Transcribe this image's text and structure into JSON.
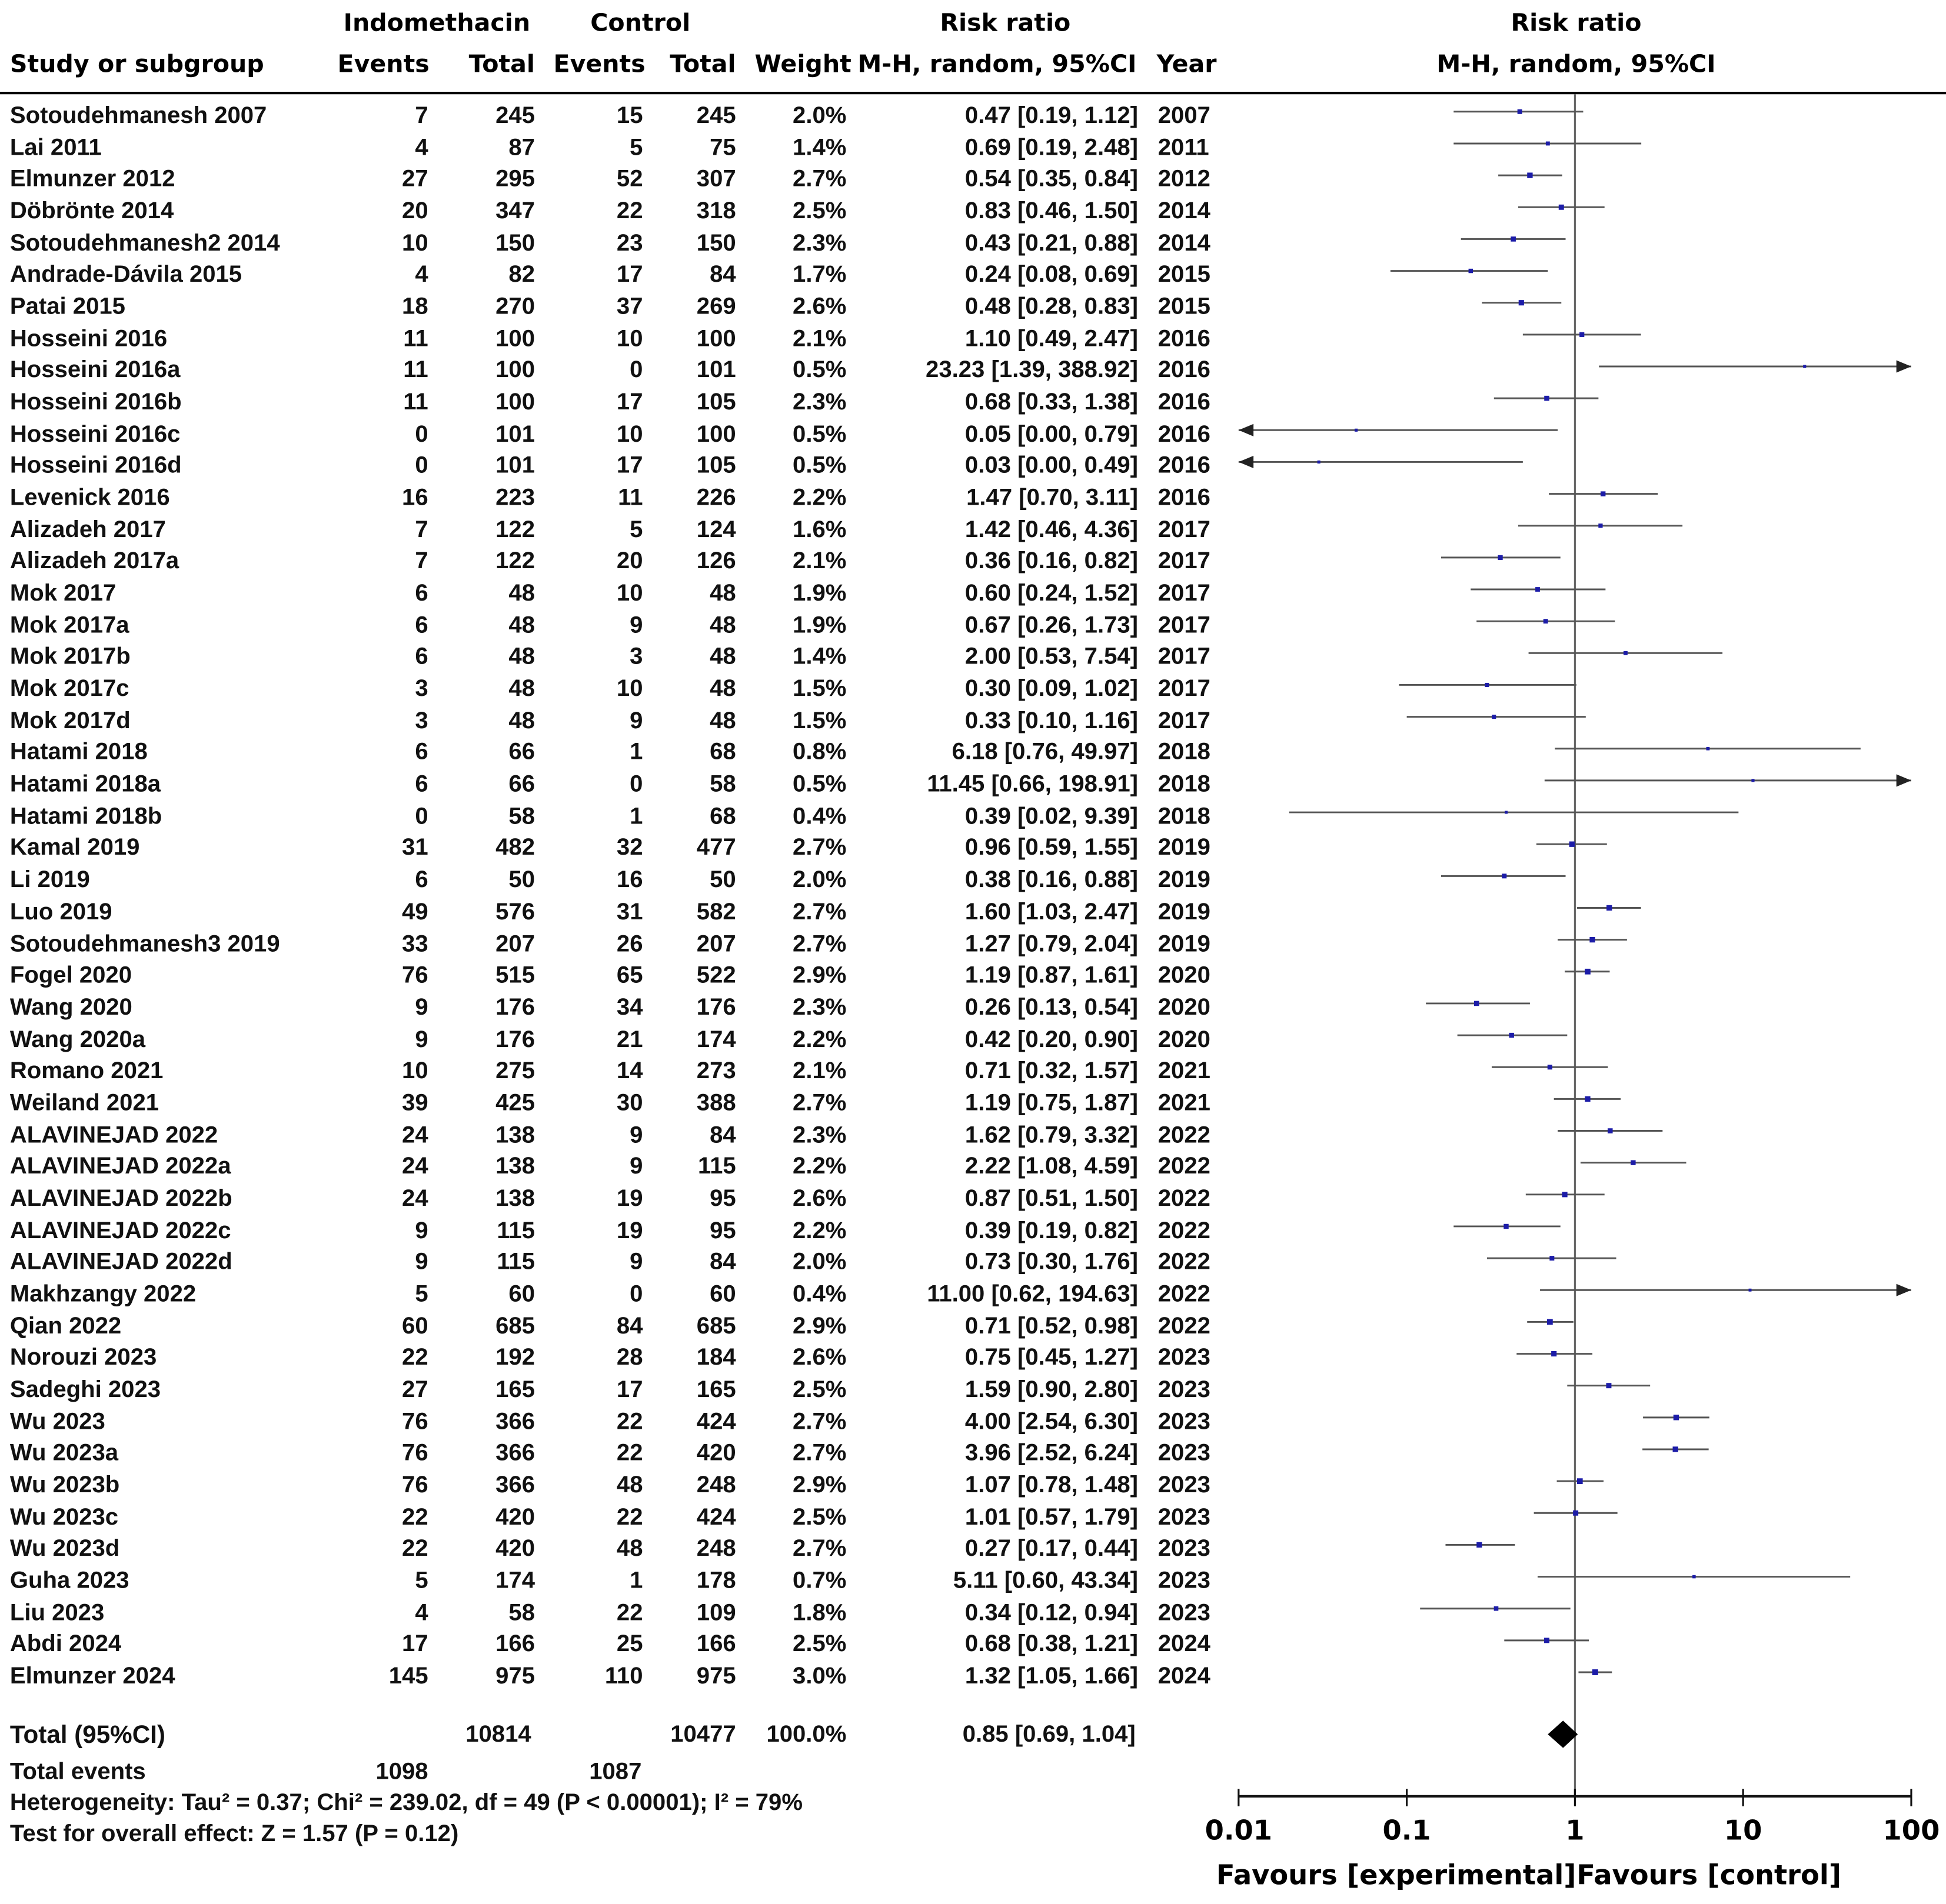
{
  "header": {
    "group1": "Indomethacin",
    "group2": "Control",
    "rr_col": "Risk ratio",
    "rr_plot": "Risk ratio",
    "study_col": "Study or subgroup",
    "events1": "Events",
    "total1": "Total",
    "events2": "Events",
    "total2": "Total",
    "weight": "Weight",
    "method": "M-H, random, 95%CI",
    "year": "Year",
    "method_plot": "M-H, random, 95%CI"
  },
  "total": {
    "label": "Total (95%CI)",
    "total1": "10814",
    "total2": "10477",
    "weight": "100.0%",
    "rr_ci": "0.85 [0.69, 1.04]",
    "events_label": "Total events",
    "events1": "1098",
    "events2": "1087",
    "heterogeneity": "Heterogeneity: Tau² = 0.37; Chi² = 239.02, df = 49 (P < 0.00001); I² = 79%",
    "overall": "Test for overall effect: Z = 1.57 (P = 0.12)"
  },
  "chart_data": {
    "type": "forest",
    "x_scale": "log",
    "xlim": [
      0.01,
      100
    ],
    "x_ticks": [
      "0.01",
      "0.1",
      "1",
      "10",
      "100"
    ],
    "left_label": "Favours [experimental]",
    "right_label": "Favours [control]",
    "reference_line": 1,
    "colors": {
      "square": "#1c1ca8",
      "ci_line": "#555555",
      "diamond": "#000000"
    },
    "pooled": {
      "rr": 0.85,
      "lo": 0.69,
      "hi": 1.04
    },
    "studies": [
      {
        "study": "Sotoudehmanesh 2007",
        "e1": "7",
        "n1": "245",
        "e2": "15",
        "n2": "245",
        "weight": "2.0%",
        "rr_ci": "0.47 [0.19, 1.12]",
        "year": "2007",
        "rr": 0.47,
        "lo": 0.19,
        "hi": 1.12
      },
      {
        "study": "Lai  2011",
        "e1": "4",
        "n1": "87",
        "e2": "5",
        "n2": "75",
        "weight": "1.4%",
        "rr_ci": "0.69 [0.19, 2.48]",
        "year": "2011",
        "rr": 0.69,
        "lo": 0.19,
        "hi": 2.48
      },
      {
        "study": "Elmunzer 2012",
        "e1": "27",
        "n1": "295",
        "e2": "52",
        "n2": "307",
        "weight": "2.7%",
        "rr_ci": "0.54 [0.35, 0.84]",
        "year": "2012",
        "rr": 0.54,
        "lo": 0.35,
        "hi": 0.84
      },
      {
        "study": "Döbrönte 2014",
        "e1": "20",
        "n1": "347",
        "e2": "22",
        "n2": "318",
        "weight": "2.5%",
        "rr_ci": "0.83 [0.46, 1.50]",
        "year": "2014",
        "rr": 0.83,
        "lo": 0.46,
        "hi": 1.5
      },
      {
        "study": "Sotoudehmanesh2 2014",
        "e1": "10",
        "n1": "150",
        "e2": "23",
        "n2": "150",
        "weight": "2.3%",
        "rr_ci": "0.43 [0.21, 0.88]",
        "year": "2014",
        "rr": 0.43,
        "lo": 0.21,
        "hi": 0.88
      },
      {
        "study": "Andrade-Dávila 2015",
        "e1": "4",
        "n1": "82",
        "e2": "17",
        "n2": "84",
        "weight": "1.7%",
        "rr_ci": "0.24 [0.08, 0.69]",
        "year": "2015",
        "rr": 0.24,
        "lo": 0.08,
        "hi": 0.69
      },
      {
        "study": "Patai 2015",
        "e1": "18",
        "n1": "270",
        "e2": "37",
        "n2": "269",
        "weight": "2.6%",
        "rr_ci": "0.48 [0.28, 0.83]",
        "year": "2015",
        "rr": 0.48,
        "lo": 0.28,
        "hi": 0.83
      },
      {
        "study": "Hosseini 2016",
        "e1": "11",
        "n1": "100",
        "e2": "10",
        "n2": "100",
        "weight": "2.1%",
        "rr_ci": "1.10 [0.49, 2.47]",
        "year": "2016",
        "rr": 1.1,
        "lo": 0.49,
        "hi": 2.47
      },
      {
        "study": "Hosseini 2016a",
        "e1": "11",
        "n1": "100",
        "e2": "0",
        "n2": "101",
        "weight": "0.5%",
        "rr_ci": "23.23 [1.39, 388.92]",
        "year": "2016",
        "rr": 23.23,
        "lo": 1.39,
        "hi": 388.92
      },
      {
        "study": "Hosseini 2016b",
        "e1": "11",
        "n1": "100",
        "e2": "17",
        "n2": "105",
        "weight": "2.3%",
        "rr_ci": "0.68 [0.33, 1.38]",
        "year": "2016",
        "rr": 0.68,
        "lo": 0.33,
        "hi": 1.38
      },
      {
        "study": "Hosseini 2016c",
        "e1": "0",
        "n1": "101",
        "e2": "10",
        "n2": "100",
        "weight": "0.5%",
        "rr_ci": "0.05 [0.00, 0.79]",
        "year": "2016",
        "rr": 0.05,
        "lo": 0.0,
        "hi": 0.79
      },
      {
        "study": "Hosseini 2016d",
        "e1": "0",
        "n1": "101",
        "e2": "17",
        "n2": "105",
        "weight": "0.5%",
        "rr_ci": "0.03 [0.00, 0.49]",
        "year": "2016",
        "rr": 0.03,
        "lo": 0.0,
        "hi": 0.49
      },
      {
        "study": "Levenick 2016",
        "e1": "16",
        "n1": "223",
        "e2": "11",
        "n2": "226",
        "weight": "2.2%",
        "rr_ci": "1.47 [0.70, 3.11]",
        "year": "2016",
        "rr": 1.47,
        "lo": 0.7,
        "hi": 3.11
      },
      {
        "study": "Alizadeh 2017",
        "e1": "7",
        "n1": "122",
        "e2": "5",
        "n2": "124",
        "weight": "1.6%",
        "rr_ci": "1.42 [0.46, 4.36]",
        "year": "2017",
        "rr": 1.42,
        "lo": 0.46,
        "hi": 4.36
      },
      {
        "study": "Alizadeh  2017a",
        "e1": "7",
        "n1": "122",
        "e2": "20",
        "n2": "126",
        "weight": "2.1%",
        "rr_ci": "0.36 [0.16, 0.82]",
        "year": "2017",
        "rr": 0.36,
        "lo": 0.16,
        "hi": 0.82
      },
      {
        "study": "Mok 2017",
        "e1": "6",
        "n1": "48",
        "e2": "10",
        "n2": "48",
        "weight": "1.9%",
        "rr_ci": "0.60 [0.24, 1.52]",
        "year": "2017",
        "rr": 0.6,
        "lo": 0.24,
        "hi": 1.52
      },
      {
        "study": "Mok 2017a",
        "e1": "6",
        "n1": "48",
        "e2": "9",
        "n2": "48",
        "weight": "1.9%",
        "rr_ci": "0.67 [0.26, 1.73]",
        "year": "2017",
        "rr": 0.67,
        "lo": 0.26,
        "hi": 1.73
      },
      {
        "study": "Mok 2017b",
        "e1": "6",
        "n1": "48",
        "e2": "3",
        "n2": "48",
        "weight": "1.4%",
        "rr_ci": "2.00 [0.53, 7.54]",
        "year": "2017",
        "rr": 2.0,
        "lo": 0.53,
        "hi": 7.54
      },
      {
        "study": "Mok 2017c",
        "e1": "3",
        "n1": "48",
        "e2": "10",
        "n2": "48",
        "weight": "1.5%",
        "rr_ci": "0.30 [0.09, 1.02]",
        "year": "2017",
        "rr": 0.3,
        "lo": 0.09,
        "hi": 1.02
      },
      {
        "study": "Mok 2017d",
        "e1": "3",
        "n1": "48",
        "e2": "9",
        "n2": "48",
        "weight": "1.5%",
        "rr_ci": "0.33 [0.10, 1.16]",
        "year": "2017",
        "rr": 0.33,
        "lo": 0.1,
        "hi": 1.16
      },
      {
        "study": "Hatami 2018",
        "e1": "6",
        "n1": "66",
        "e2": "1",
        "n2": "68",
        "weight": "0.8%",
        "rr_ci": "6.18 [0.76, 49.97]",
        "year": "2018",
        "rr": 6.18,
        "lo": 0.76,
        "hi": 49.97
      },
      {
        "study": "Hatami 2018a",
        "e1": "6",
        "n1": "66",
        "e2": "0",
        "n2": "58",
        "weight": "0.5%",
        "rr_ci": "11.45 [0.66, 198.91]",
        "year": "2018",
        "rr": 11.45,
        "lo": 0.66,
        "hi": 198.91
      },
      {
        "study": "Hatami 2018b",
        "e1": "0",
        "n1": "58",
        "e2": "1",
        "n2": "68",
        "weight": "0.4%",
        "rr_ci": "0.39 [0.02, 9.39]",
        "year": "2018",
        "rr": 0.39,
        "lo": 0.02,
        "hi": 9.39
      },
      {
        "study": "Kamal 2019",
        "e1": "31",
        "n1": "482",
        "e2": "32",
        "n2": "477",
        "weight": "2.7%",
        "rr_ci": "0.96 [0.59, 1.55]",
        "year": "2019",
        "rr": 0.96,
        "lo": 0.59,
        "hi": 1.55
      },
      {
        "study": "Li 2019",
        "e1": "6",
        "n1": "50",
        "e2": "16",
        "n2": "50",
        "weight": "2.0%",
        "rr_ci": "0.38 [0.16, 0.88]",
        "year": "2019",
        "rr": 0.38,
        "lo": 0.16,
        "hi": 0.88
      },
      {
        "study": "Luo 2019",
        "e1": "49",
        "n1": "576",
        "e2": "31",
        "n2": "582",
        "weight": "2.7%",
        "rr_ci": "1.60 [1.03, 2.47]",
        "year": "2019",
        "rr": 1.6,
        "lo": 1.03,
        "hi": 2.47
      },
      {
        "study": "Sotoudehmanesh3 2019",
        "e1": "33",
        "n1": "207",
        "e2": "26",
        "n2": "207",
        "weight": "2.7%",
        "rr_ci": "1.27 [0.79, 2.04]",
        "year": "2019",
        "rr": 1.27,
        "lo": 0.79,
        "hi": 2.04
      },
      {
        "study": "Fogel 2020",
        "e1": "76",
        "n1": "515",
        "e2": "65",
        "n2": "522",
        "weight": "2.9%",
        "rr_ci": "1.19 [0.87, 1.61]",
        "year": "2020",
        "rr": 1.19,
        "lo": 0.87,
        "hi": 1.61
      },
      {
        "study": "Wang 2020",
        "e1": "9",
        "n1": "176",
        "e2": "34",
        "n2": "176",
        "weight": "2.3%",
        "rr_ci": "0.26 [0.13, 0.54]",
        "year": "2020",
        "rr": 0.26,
        "lo": 0.13,
        "hi": 0.54
      },
      {
        "study": "Wang 2020a",
        "e1": "9",
        "n1": "176",
        "e2": "21",
        "n2": "174",
        "weight": "2.2%",
        "rr_ci": "0.42 [0.20, 0.90]",
        "year": "2020",
        "rr": 0.42,
        "lo": 0.2,
        "hi": 0.9
      },
      {
        "study": "Romano 2021",
        "e1": "10",
        "n1": "275",
        "e2": "14",
        "n2": "273",
        "weight": "2.1%",
        "rr_ci": "0.71 [0.32, 1.57]",
        "year": "2021",
        "rr": 0.71,
        "lo": 0.32,
        "hi": 1.57
      },
      {
        "study": "Weiland 2021",
        "e1": "39",
        "n1": "425",
        "e2": "30",
        "n2": "388",
        "weight": "2.7%",
        "rr_ci": "1.19 [0.75, 1.87]",
        "year": "2021",
        "rr": 1.19,
        "lo": 0.75,
        "hi": 1.87
      },
      {
        "study": "ALAVINEJAD  2022",
        "e1": "24",
        "n1": "138",
        "e2": "9",
        "n2": "84",
        "weight": "2.3%",
        "rr_ci": "1.62 [0.79, 3.32]",
        "year": "2022",
        "rr": 1.62,
        "lo": 0.79,
        "hi": 3.32
      },
      {
        "study": "ALAVINEJAD  2022a",
        "e1": "24",
        "n1": "138",
        "e2": "9",
        "n2": "115",
        "weight": "2.2%",
        "rr_ci": "2.22 [1.08, 4.59]",
        "year": "2022",
        "rr": 2.22,
        "lo": 1.08,
        "hi": 4.59
      },
      {
        "study": "ALAVINEJAD  2022b",
        "e1": "24",
        "n1": "138",
        "e2": "19",
        "n2": "95",
        "weight": "2.6%",
        "rr_ci": "0.87 [0.51, 1.50]",
        "year": "2022",
        "rr": 0.87,
        "lo": 0.51,
        "hi": 1.5
      },
      {
        "study": "ALAVINEJAD  2022c",
        "e1": "9",
        "n1": "115",
        "e2": "19",
        "n2": "95",
        "weight": "2.2%",
        "rr_ci": "0.39 [0.19, 0.82]",
        "year": "2022",
        "rr": 0.39,
        "lo": 0.19,
        "hi": 0.82
      },
      {
        "study": "ALAVINEJAD  2022d",
        "e1": "9",
        "n1": "115",
        "e2": "9",
        "n2": "84",
        "weight": "2.0%",
        "rr_ci": "0.73 [0.30, 1.76]",
        "year": "2022",
        "rr": 0.73,
        "lo": 0.3,
        "hi": 1.76
      },
      {
        "study": "Makhzangy 2022",
        "e1": "5",
        "n1": "60",
        "e2": "0",
        "n2": "60",
        "weight": "0.4%",
        "rr_ci": "11.00 [0.62, 194.63]",
        "year": "2022",
        "rr": 11.0,
        "lo": 0.62,
        "hi": 194.63
      },
      {
        "study": "Qian 2022",
        "e1": "60",
        "n1": "685",
        "e2": "84",
        "n2": "685",
        "weight": "2.9%",
        "rr_ci": "0.71 [0.52, 0.98]",
        "year": "2022",
        "rr": 0.71,
        "lo": 0.52,
        "hi": 0.98
      },
      {
        "study": "Norouzi 2023",
        "e1": "22",
        "n1": "192",
        "e2": "28",
        "n2": "184",
        "weight": "2.6%",
        "rr_ci": "0.75 [0.45, 1.27]",
        "year": "2023",
        "rr": 0.75,
        "lo": 0.45,
        "hi": 1.27
      },
      {
        "study": "Sadeghi 2023",
        "e1": "27",
        "n1": "165",
        "e2": "17",
        "n2": "165",
        "weight": "2.5%",
        "rr_ci": "1.59 [0.90, 2.80]",
        "year": "2023",
        "rr": 1.59,
        "lo": 0.9,
        "hi": 2.8
      },
      {
        "study": "Wu 2023",
        "e1": "76",
        "n1": "366",
        "e2": "22",
        "n2": "424",
        "weight": "2.7%",
        "rr_ci": "4.00 [2.54, 6.30]",
        "year": "2023",
        "rr": 4.0,
        "lo": 2.54,
        "hi": 6.3
      },
      {
        "study": "Wu 2023a",
        "e1": "76",
        "n1": "366",
        "e2": "22",
        "n2": "420",
        "weight": "2.7%",
        "rr_ci": "3.96 [2.52, 6.24]",
        "year": "2023",
        "rr": 3.96,
        "lo": 2.52,
        "hi": 6.24
      },
      {
        "study": "Wu 2023b",
        "e1": "76",
        "n1": "366",
        "e2": "48",
        "n2": "248",
        "weight": "2.9%",
        "rr_ci": "1.07 [0.78, 1.48]",
        "year": "2023",
        "rr": 1.07,
        "lo": 0.78,
        "hi": 1.48
      },
      {
        "study": "Wu 2023c",
        "e1": "22",
        "n1": "420",
        "e2": "22",
        "n2": "424",
        "weight": "2.5%",
        "rr_ci": "1.01 [0.57, 1.79]",
        "year": "2023",
        "rr": 1.01,
        "lo": 0.57,
        "hi": 1.79
      },
      {
        "study": "Wu 2023d",
        "e1": "22",
        "n1": "420",
        "e2": "48",
        "n2": "248",
        "weight": "2.7%",
        "rr_ci": "0.27 [0.17, 0.44]",
        "year": "2023",
        "rr": 0.27,
        "lo": 0.17,
        "hi": 0.44
      },
      {
        "study": "Guha 2023",
        "e1": "5",
        "n1": "174",
        "e2": "1",
        "n2": "178",
        "weight": "0.7%",
        "rr_ci": "5.11 [0.60, 43.34]",
        "year": "2023",
        "rr": 5.11,
        "lo": 0.6,
        "hi": 43.34
      },
      {
        "study": "Liu 2023",
        "e1": "4",
        "n1": "58",
        "e2": "22",
        "n2": "109",
        "weight": "1.8%",
        "rr_ci": "0.34 [0.12, 0.94]",
        "year": "2023",
        "rr": 0.34,
        "lo": 0.12,
        "hi": 0.94
      },
      {
        "study": "Abdi 2024",
        "e1": "17",
        "n1": "166",
        "e2": "25",
        "n2": "166",
        "weight": "2.5%",
        "rr_ci": "0.68 [0.38, 1.21]",
        "year": "2024",
        "rr": 0.68,
        "lo": 0.38,
        "hi": 1.21
      },
      {
        "study": "Elmunzer 2024",
        "e1": "145",
        "n1": "975",
        "e2": "110",
        "n2": "975",
        "weight": "3.0%",
        "rr_ci": "1.32 [1.05, 1.66]",
        "year": "2024",
        "rr": 1.32,
        "lo": 1.05,
        "hi": 1.66
      }
    ]
  }
}
